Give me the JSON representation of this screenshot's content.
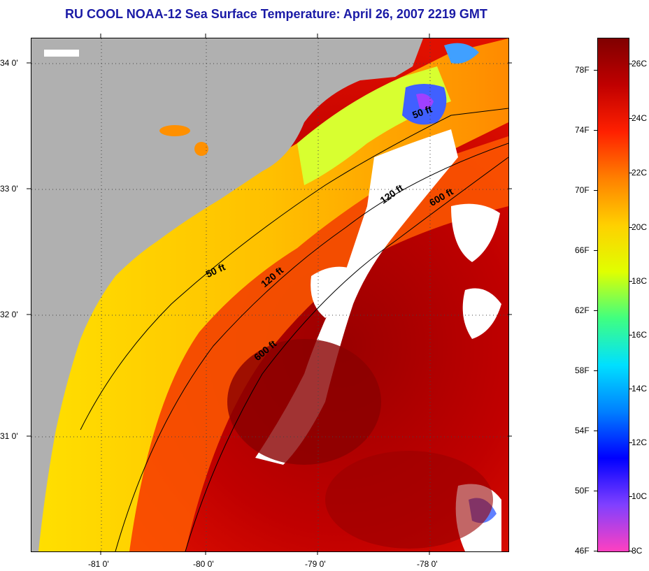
{
  "title": "RU COOL  NOAA-12  Sea Surface Temperature:  April 26, 2007 2219 GMT",
  "map": {
    "lat_labels": [
      "34 0'",
      "33 0'",
      "32 0'",
      "31 0'"
    ],
    "lon_labels": [
      "-81 0'",
      "-80 0'",
      "-79 0'",
      "-78 0'"
    ],
    "contour_labels": [
      "50 ft",
      "120 ft",
      "600 ft",
      "50 ft",
      "120 ft",
      "600 ft"
    ],
    "colors": {
      "land": "#b0b0b0",
      "cloud": "#ffffff",
      "warm": "#c40000",
      "shelf": "#ffb000"
    }
  },
  "colorbar": {
    "fahrenheit": [
      "78F",
      "74F",
      "70F",
      "66F",
      "62F",
      "58F",
      "54F",
      "50F",
      "46F"
    ],
    "celsius": [
      "26C",
      "24C",
      "22C",
      "20C",
      "18C",
      "16C",
      "14C",
      "12C",
      "10C",
      "8C"
    ],
    "gradient": [
      "#ff40c0",
      "#8040ff",
      "#0000ff",
      "#0080ff",
      "#00e0ff",
      "#40ff80",
      "#e0ff00",
      "#ffd000",
      "#ff8000",
      "#ff2000",
      "#c00000",
      "#800000"
    ]
  }
}
